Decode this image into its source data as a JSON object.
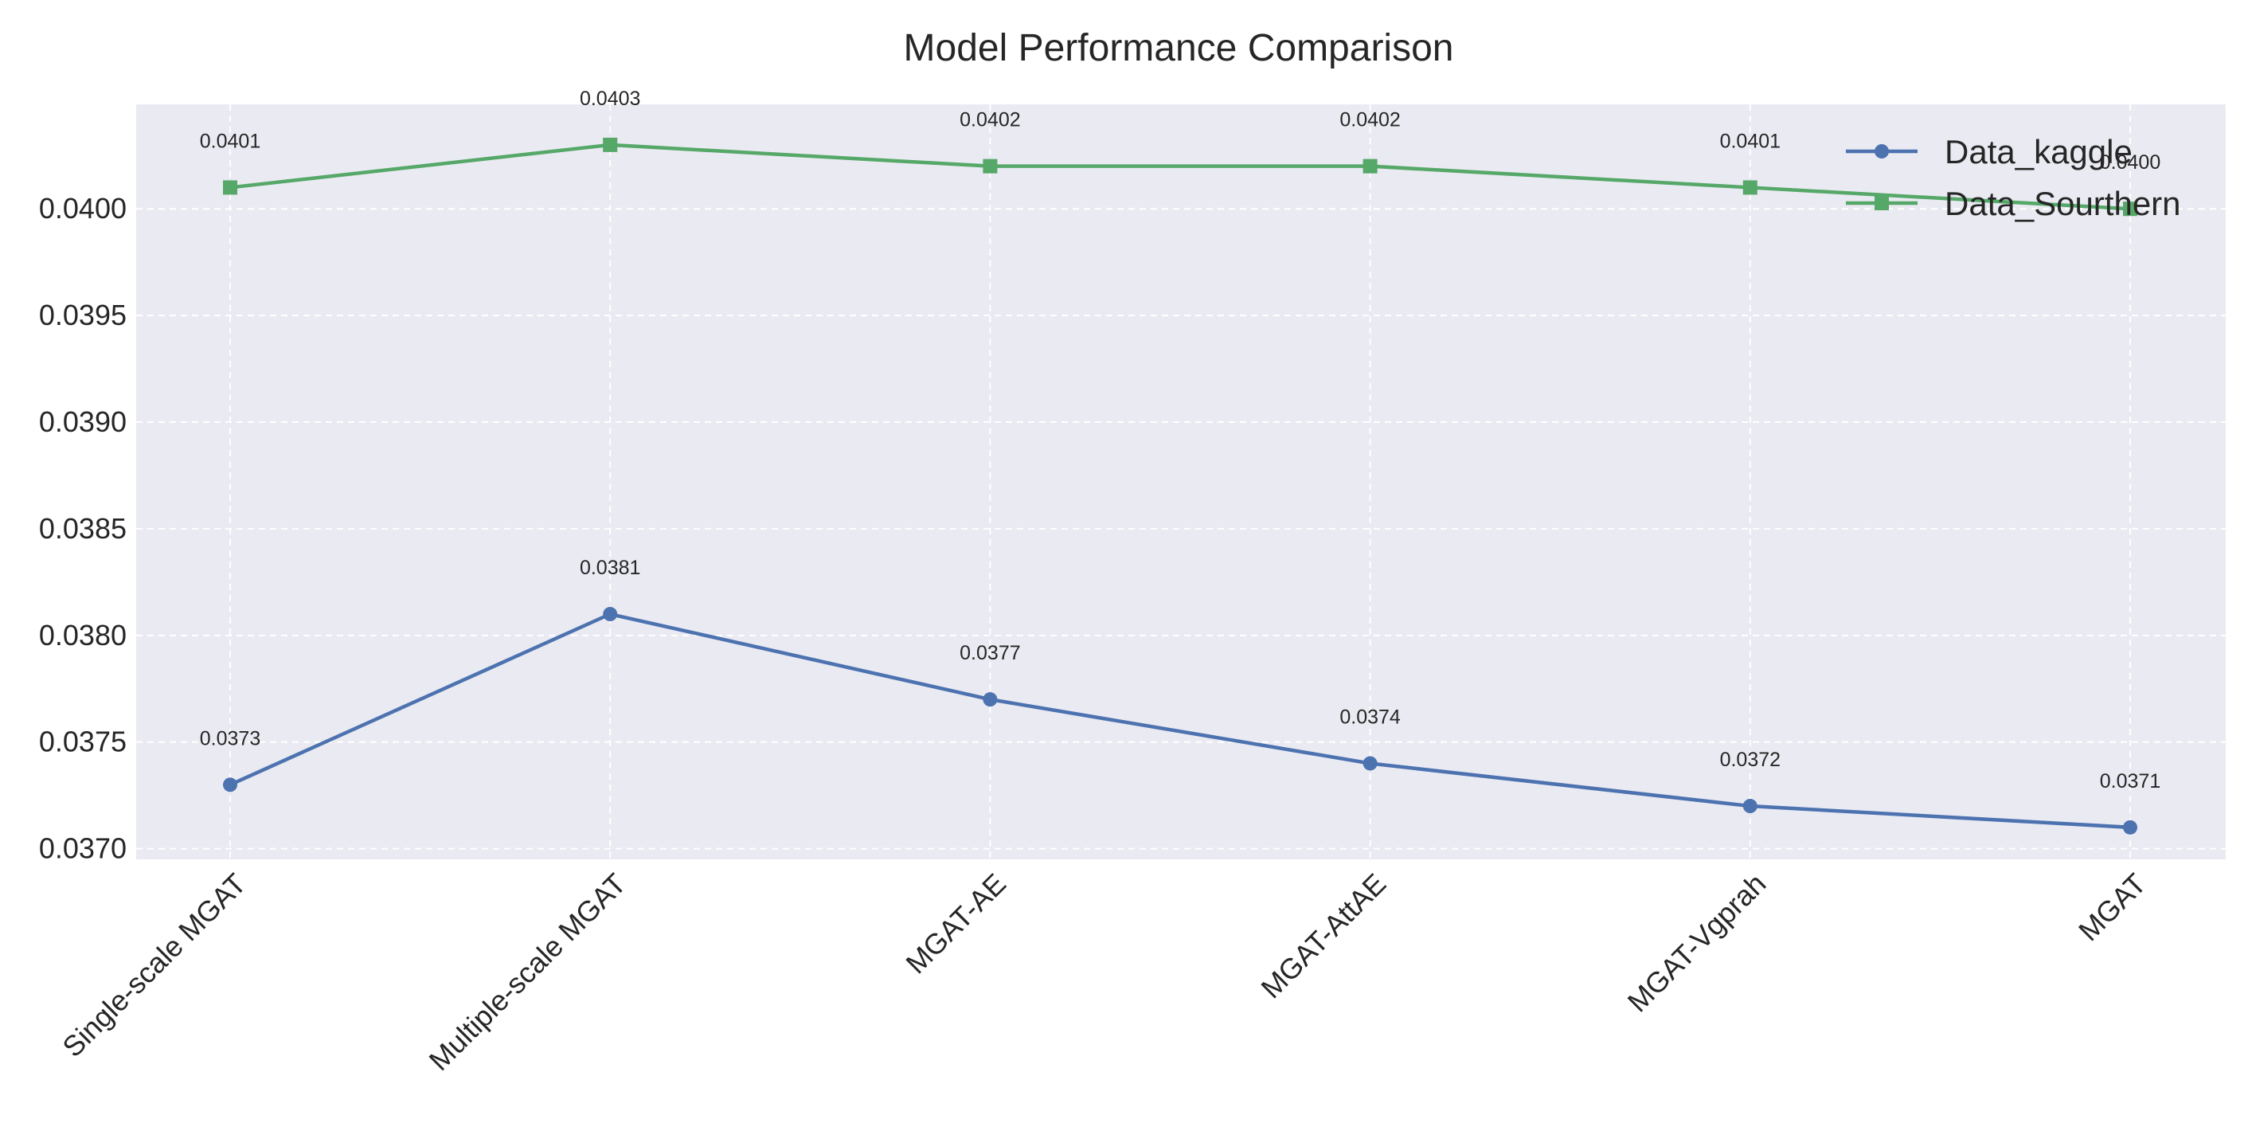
{
  "chart_data": {
    "type": "line",
    "title": "Model Performance Comparison",
    "xlabel": "",
    "ylabel": "",
    "categories": [
      "Single-scale MGAT",
      "Multiple-scale MGAT",
      "MGAT-AE",
      "MGAT-AttAE",
      "MGAT-Vgprah",
      "MGAT"
    ],
    "series": [
      {
        "name": "Data_kaggle",
        "values": [
          0.0373,
          0.0381,
          0.0377,
          0.0374,
          0.0372,
          0.0371
        ],
        "labels": [
          "0.0373",
          "0.0381",
          "0.0377",
          "0.0374",
          "0.0372",
          "0.0371"
        ],
        "color": "#4c72b0",
        "marker": "circle"
      },
      {
        "name": "Data_Sourthern",
        "values": [
          0.0401,
          0.0403,
          0.0402,
          0.0402,
          0.0401,
          0.04
        ],
        "labels": [
          "0.0401",
          "0.0403",
          "0.0402",
          "0.0402",
          "0.0401",
          "0.0400"
        ],
        "color": "#55a868",
        "marker": "square"
      }
    ],
    "ylim": [
      0.03695,
      0.04049
    ],
    "yticks": [
      "0.0370",
      "0.0375",
      "0.0380",
      "0.0385",
      "0.0390",
      "0.0395",
      "0.0400"
    ],
    "ytick_values": [
      0.037,
      0.0375,
      0.038,
      0.0385,
      0.039,
      0.0395,
      0.04
    ],
    "grid": true,
    "legend_position": "top-right",
    "background": "#eaeaf2",
    "grid_color": "#ffffff"
  }
}
